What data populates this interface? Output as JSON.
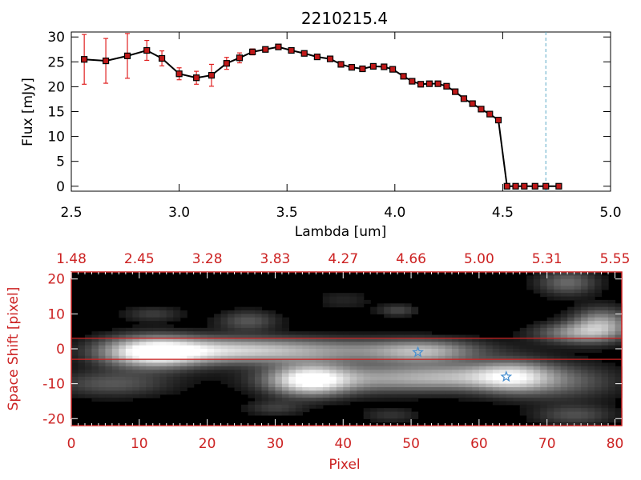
{
  "chart_data": [
    {
      "type": "line",
      "title": "2210215.4",
      "xlabel": "Lambda [um]",
      "ylabel": "Flux [mJy]",
      "xlim": [
        2.5,
        5.0
      ],
      "ylim": [
        -1,
        31
      ],
      "xticks": [
        "2.5",
        "3.0",
        "3.5",
        "4.0",
        "4.5",
        "5.0"
      ],
      "yticks": [
        "0",
        "5",
        "10",
        "15",
        "20",
        "25",
        "30"
      ],
      "grid": false,
      "series": [
        {
          "x": [
            2.56,
            2.66,
            2.76,
            2.85,
            2.92,
            3.0,
            3.08,
            3.15,
            3.22,
            3.28,
            3.34,
            3.4,
            3.46,
            3.52,
            3.58,
            3.64,
            3.7,
            3.75,
            3.8,
            3.85,
            3.9,
            3.95,
            3.99,
            4.04,
            4.08,
            4.12,
            4.16,
            4.2,
            4.24,
            4.28,
            4.32,
            4.36,
            4.4,
            4.44,
            4.48,
            4.52,
            4.56,
            4.6,
            4.65,
            4.7,
            4.76
          ],
          "y": [
            25.5,
            25.2,
            26.2,
            27.3,
            25.7,
            22.6,
            21.8,
            22.3,
            24.7,
            25.8,
            27.0,
            27.5,
            28.0,
            27.3,
            26.7,
            26.0,
            25.6,
            24.5,
            23.9,
            23.6,
            24.1,
            24.0,
            23.5,
            22.1,
            21.1,
            20.5,
            20.6,
            20.6,
            20.1,
            19.0,
            17.6,
            16.6,
            15.5,
            14.5,
            13.3,
            0.0,
            0.0,
            0.0,
            0.0,
            0.0,
            0.0
          ],
          "yerr": [
            5.0,
            4.5,
            4.5,
            2.0,
            1.5,
            1.2,
            1.3,
            2.2,
            1.2,
            1.0,
            0.6,
            0.5,
            0.5,
            0.5,
            0.4,
            0.4,
            0.4,
            0.4,
            0.4,
            0.4,
            0.4,
            0.4,
            0.4,
            0.4,
            0.4,
            0.4,
            0.4,
            0.4,
            0.4,
            0.4,
            0.4,
            0.4,
            0.4,
            0.4,
            0.4,
            0,
            0,
            0,
            0,
            0,
            0
          ],
          "line_color": "#000000",
          "marker_color": "#c01818",
          "errorbar_color": "#e02020"
        }
      ],
      "annotations": {
        "vertical_dashed_line_x": 4.7,
        "vertical_dashed_line_color": "#5aaac8"
      }
    },
    {
      "type": "heatmap",
      "colormap": "grayscale",
      "xlabel": "Pixel",
      "ylabel": "Space Shift [pixel]",
      "xlim": [
        0,
        81
      ],
      "ylim": [
        -22,
        22
      ],
      "xticks": [
        "0",
        "10",
        "20",
        "30",
        "40",
        "50",
        "60",
        "70",
        "80"
      ],
      "yticks": [
        "-20",
        "-10",
        "0",
        "10",
        "20"
      ],
      "top_axis_ticks": [
        "1.48",
        "2.45",
        "3.28",
        "3.83",
        "4.27",
        "4.66",
        "5.00",
        "5.31",
        "5.55"
      ],
      "axis_color": "#cc2222",
      "horizontal_red_lines_y": [
        3,
        -3
      ],
      "star_markers": [
        {
          "x": 51,
          "y": -1
        },
        {
          "x": 64,
          "y": -8
        }
      ],
      "star_color": "#4a90d0",
      "blobs": [
        {
          "x": 12,
          "y": -1,
          "sx": 5,
          "sy": 3,
          "v": 0.95
        },
        {
          "x": 22,
          "y": -0.5,
          "sx": 9,
          "sy": 2.5,
          "v": 0.55
        },
        {
          "x": 38,
          "y": -0.5,
          "sx": 14,
          "sy": 2.4,
          "v": 0.42
        },
        {
          "x": 52,
          "y": -0.8,
          "sx": 5,
          "sy": 2.2,
          "v": 0.45
        },
        {
          "x": 35,
          "y": -9,
          "sx": 4,
          "sy": 3,
          "v": 0.9
        },
        {
          "x": 45,
          "y": -8.5,
          "sx": 10,
          "sy": 2.8,
          "v": 0.48
        },
        {
          "x": 58,
          "y": -8,
          "sx": 7,
          "sy": 2.5,
          "v": 0.42
        },
        {
          "x": 65,
          "y": -8,
          "sx": 4,
          "sy": 3,
          "v": 0.6
        },
        {
          "x": 72,
          "y": -9.5,
          "sx": 6,
          "sy": 3.5,
          "v": 0.3
        },
        {
          "x": 78,
          "y": 7,
          "sx": 3,
          "sy": 3,
          "v": 0.6
        },
        {
          "x": 74,
          "y": 4.5,
          "sx": 4,
          "sy": 2,
          "v": 0.45
        },
        {
          "x": 73,
          "y": 19,
          "sx": 3,
          "sy": 2.5,
          "v": 0.35
        },
        {
          "x": 26,
          "y": 8,
          "sx": 3,
          "sy": 2,
          "v": 0.28
        },
        {
          "x": 12,
          "y": 10,
          "sx": 3,
          "sy": 1.5,
          "v": 0.18
        },
        {
          "x": 48,
          "y": 11,
          "sx": 2,
          "sy": 1.2,
          "v": 0.22
        },
        {
          "x": 6,
          "y": -10,
          "sx": 6,
          "sy": 2.5,
          "v": 0.28
        },
        {
          "x": 30,
          "y": -17,
          "sx": 3,
          "sy": 1.5,
          "v": 0.18
        },
        {
          "x": 47,
          "y": -19,
          "sx": 3,
          "sy": 1.5,
          "v": 0.15
        },
        {
          "x": 74,
          "y": -19,
          "sx": 4,
          "sy": 2,
          "v": 0.25
        },
        {
          "x": 40,
          "y": 14,
          "sx": 3,
          "sy": 2,
          "v": 0.1
        }
      ]
    }
  ]
}
